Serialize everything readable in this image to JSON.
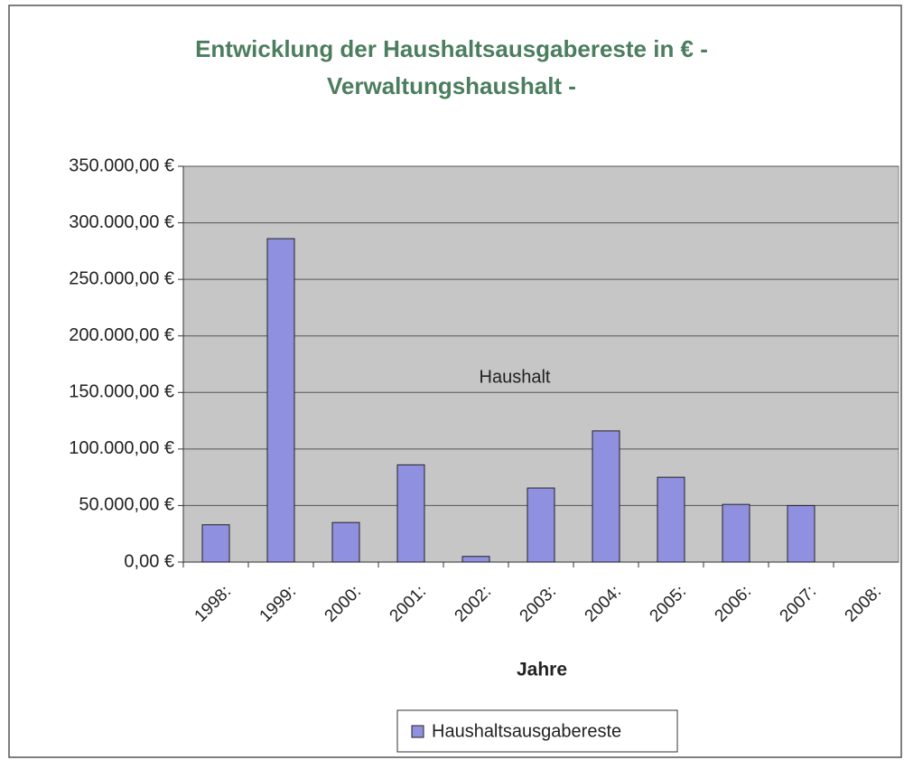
{
  "chart_data": {
    "type": "bar",
    "title": [
      "Entwicklung der Haushaltsausgabereste in € -",
      "Verwaltungshaushalt -"
    ],
    "annotation": "Haushalt",
    "x_label": "Jahre",
    "categories": [
      "1998:",
      "1999:",
      "2000:",
      "2001:",
      "2002:",
      "2003:",
      "2004:",
      "2005:",
      "2006:",
      "2007:",
      "2008:"
    ],
    "series": [
      {
        "name": "Haushaltsausgabereste",
        "color": "#9090e0",
        "values": [
          33000,
          286000,
          35000,
          86000,
          5000,
          65500,
          116000,
          75000,
          51000,
          50000,
          null
        ]
      }
    ],
    "ylim": [
      0,
      350000
    ],
    "yticks": [
      {
        "value": 0,
        "label": "0,00 €"
      },
      {
        "value": 50000,
        "label": "50.000,00 €"
      },
      {
        "value": 100000,
        "label": "100.000,00 €"
      },
      {
        "value": 150000,
        "label": "150.000,00 €"
      },
      {
        "value": 200000,
        "label": "200.000,00 €"
      },
      {
        "value": 250000,
        "label": "250.000,00 €"
      },
      {
        "value": 300000,
        "label": "300.000,00 €"
      },
      {
        "value": 350000,
        "label": "350.000,00 €"
      }
    ],
    "grid": true,
    "legend": "bottom"
  }
}
